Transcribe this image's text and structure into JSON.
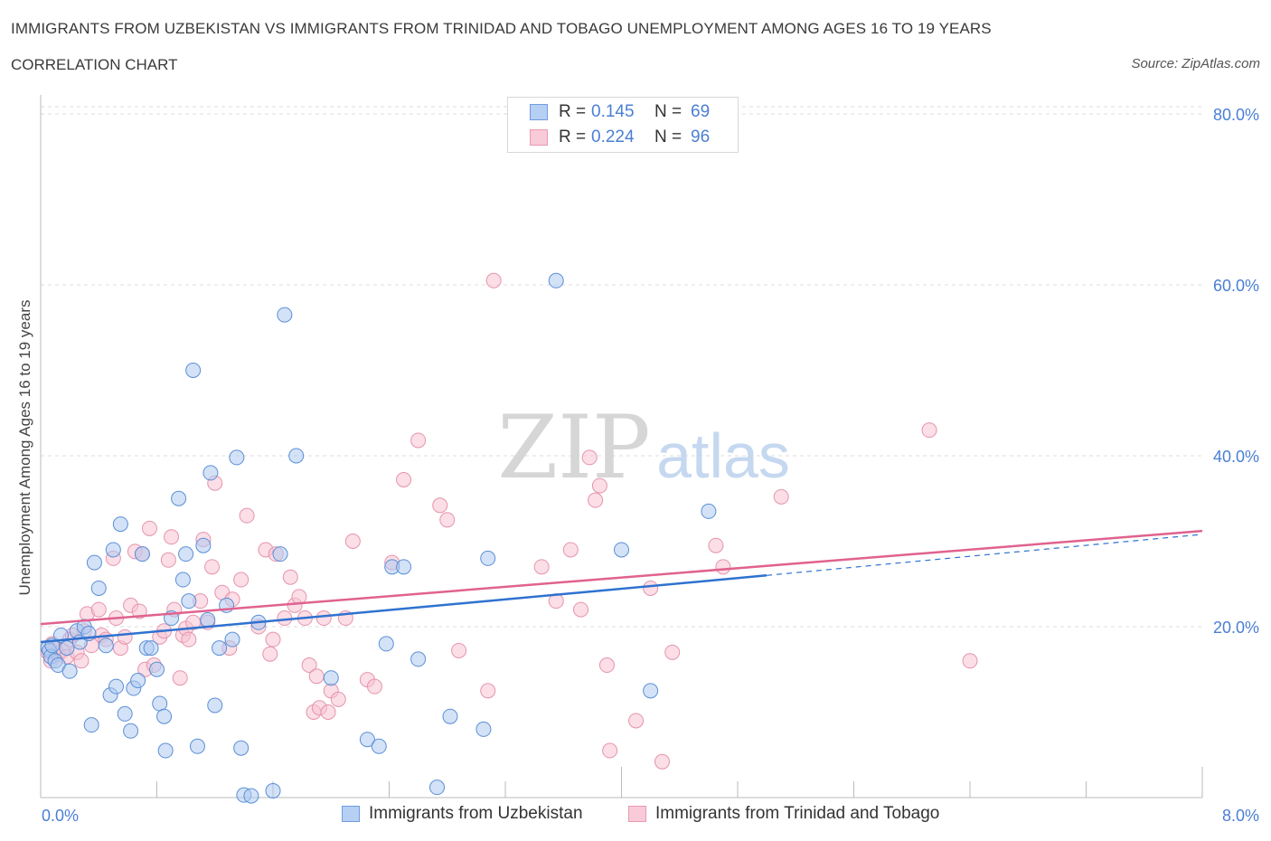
{
  "header": {
    "title": "IMMIGRANTS FROM UZBEKISTAN VS IMMIGRANTS FROM TRINIDAD AND TOBAGO UNEMPLOYMENT AMONG AGES 16 TO 19 YEARS",
    "subtitle": "CORRELATION CHART",
    "source": "Source: ZipAtlas.com"
  },
  "watermark": {
    "zip": "ZIP",
    "atlas": "atlas"
  },
  "legend": {
    "rows": [
      {
        "r_label": "R =",
        "r_value": "0.145",
        "n_label": "N =",
        "n_value": "69"
      },
      {
        "r_label": "R =",
        "r_value": "0.224",
        "n_label": "N =",
        "n_value": "96"
      }
    ]
  },
  "colors": {
    "blue_fill": "#aecbf0",
    "blue_stroke": "#5b8fd6",
    "blue_line": "#2f72d0",
    "pink_fill": "#f7c3d2",
    "pink_stroke": "#e594ad",
    "pink_line": "#e0628f",
    "axis_label": "#4a7fd4",
    "grid": "#dcdcdc"
  },
  "chart_data": {
    "type": "scatter",
    "title": "IMMIGRANTS FROM UZBEKISTAN VS IMMIGRANTS FROM TRINIDAD AND TOBAGO UNEMPLOYMENT AMONG AGES 16 TO 19 YEARS",
    "xlabel": "",
    "ylabel": "Unemployment Among Ages 16 to 19 years",
    "xlim": [
      0,
      8
    ],
    "ylim": [
      0,
      80
    ],
    "x_tick_labels": [
      "0.0%",
      "8.0%"
    ],
    "y_ticks": [
      20,
      40,
      60,
      80
    ],
    "y_tick_labels": [
      "20.0%",
      "40.0%",
      "60.0%",
      "80.0%"
    ],
    "grid": true,
    "legend_position": "top-center",
    "series": [
      {
        "name": "Immigrants from Uzbekistan",
        "color": "#5b8fd6",
        "trend": {
          "x": [
            0,
            5.0
          ],
          "y": [
            18.2,
            26.0
          ],
          "dashed_to": [
            8.0,
            30.8
          ]
        },
        "points": [
          [
            0.05,
            17.5
          ],
          [
            0.06,
            17.2
          ],
          [
            0.07,
            16.5
          ],
          [
            0.08,
            17.8
          ],
          [
            0.1,
            16.0
          ],
          [
            0.12,
            15.5
          ],
          [
            0.14,
            19.0
          ],
          [
            0.18,
            17.5
          ],
          [
            0.2,
            14.8
          ],
          [
            0.25,
            19.5
          ],
          [
            0.27,
            18.2
          ],
          [
            0.3,
            20.0
          ],
          [
            0.33,
            19.2
          ],
          [
            0.35,
            8.5
          ],
          [
            0.37,
            27.5
          ],
          [
            0.4,
            24.5
          ],
          [
            0.45,
            17.8
          ],
          [
            0.48,
            12.0
          ],
          [
            0.5,
            29.0
          ],
          [
            0.52,
            13.0
          ],
          [
            0.55,
            32.0
          ],
          [
            0.58,
            9.8
          ],
          [
            0.62,
            7.8
          ],
          [
            0.64,
            12.8
          ],
          [
            0.67,
            13.7
          ],
          [
            0.7,
            28.5
          ],
          [
            0.73,
            17.5
          ],
          [
            0.76,
            17.5
          ],
          [
            0.8,
            15.0
          ],
          [
            0.82,
            11.0
          ],
          [
            0.85,
            9.5
          ],
          [
            0.86,
            5.5
          ],
          [
            0.9,
            21.0
          ],
          [
            0.95,
            35.0
          ],
          [
            0.98,
            25.5
          ],
          [
            1.0,
            28.5
          ],
          [
            1.02,
            23.0
          ],
          [
            1.05,
            50.0
          ],
          [
            1.08,
            6.0
          ],
          [
            1.12,
            29.5
          ],
          [
            1.15,
            20.8
          ],
          [
            1.17,
            38.0
          ],
          [
            1.2,
            10.8
          ],
          [
            1.23,
            17.5
          ],
          [
            1.28,
            22.5
          ],
          [
            1.32,
            18.5
          ],
          [
            1.35,
            39.8
          ],
          [
            1.38,
            5.8
          ],
          [
            1.4,
            0.3
          ],
          [
            1.45,
            0.2
          ],
          [
            1.5,
            20.5
          ],
          [
            1.6,
            0.8
          ],
          [
            1.65,
            28.5
          ],
          [
            1.68,
            56.5
          ],
          [
            1.76,
            40.0
          ],
          [
            2.0,
            14.0
          ],
          [
            2.25,
            6.8
          ],
          [
            2.33,
            6.0
          ],
          [
            2.38,
            18.0
          ],
          [
            2.42,
            27.0
          ],
          [
            2.5,
            27.0
          ],
          [
            2.6,
            16.2
          ],
          [
            2.73,
            1.2
          ],
          [
            2.82,
            9.5
          ],
          [
            3.05,
            8.0
          ],
          [
            3.08,
            28.0
          ],
          [
            3.55,
            60.5
          ],
          [
            4.0,
            29.0
          ],
          [
            4.2,
            12.5
          ],
          [
            4.6,
            33.5
          ]
        ]
      },
      {
        "name": "Immigrants from Trinidad and Tobago",
        "color": "#e594ad",
        "trend": {
          "x": [
            0,
            8.0
          ],
          "y": [
            20.3,
            31.2
          ]
        },
        "points": [
          [
            0.05,
            17.0
          ],
          [
            0.07,
            16.0
          ],
          [
            0.08,
            18.0
          ],
          [
            0.1,
            17.5
          ],
          [
            0.12,
            16.8
          ],
          [
            0.15,
            17.2
          ],
          [
            0.18,
            16.5
          ],
          [
            0.2,
            18.5
          ],
          [
            0.22,
            19.0
          ],
          [
            0.25,
            17.0
          ],
          [
            0.28,
            16.0
          ],
          [
            0.3,
            19.5
          ],
          [
            0.32,
            21.5
          ],
          [
            0.35,
            17.8
          ],
          [
            0.4,
            22.0
          ],
          [
            0.42,
            19.0
          ],
          [
            0.45,
            18.5
          ],
          [
            0.5,
            28.0
          ],
          [
            0.52,
            21.0
          ],
          [
            0.55,
            17.5
          ],
          [
            0.58,
            18.8
          ],
          [
            0.62,
            22.5
          ],
          [
            0.65,
            28.8
          ],
          [
            0.68,
            21.8
          ],
          [
            0.7,
            28.5
          ],
          [
            0.72,
            15.0
          ],
          [
            0.75,
            31.5
          ],
          [
            0.78,
            15.5
          ],
          [
            0.82,
            18.8
          ],
          [
            0.85,
            19.5
          ],
          [
            0.88,
            27.8
          ],
          [
            0.9,
            30.5
          ],
          [
            0.92,
            22.0
          ],
          [
            0.96,
            14.0
          ],
          [
            0.98,
            19.0
          ],
          [
            1.0,
            19.8
          ],
          [
            1.02,
            18.5
          ],
          [
            1.05,
            20.5
          ],
          [
            1.1,
            23.0
          ],
          [
            1.12,
            30.2
          ],
          [
            1.15,
            20.5
          ],
          [
            1.18,
            27.0
          ],
          [
            1.2,
            36.8
          ],
          [
            1.25,
            24.0
          ],
          [
            1.3,
            17.5
          ],
          [
            1.32,
            23.2
          ],
          [
            1.38,
            25.5
          ],
          [
            1.42,
            33.0
          ],
          [
            1.5,
            20.0
          ],
          [
            1.55,
            29.0
          ],
          [
            1.58,
            16.8
          ],
          [
            1.6,
            18.5
          ],
          [
            1.62,
            28.5
          ],
          [
            1.68,
            21.0
          ],
          [
            1.72,
            25.8
          ],
          [
            1.75,
            22.5
          ],
          [
            1.78,
            23.5
          ],
          [
            1.82,
            21.0
          ],
          [
            1.85,
            15.5
          ],
          [
            1.88,
            10.0
          ],
          [
            1.9,
            14.2
          ],
          [
            1.92,
            10.5
          ],
          [
            1.95,
            21.0
          ],
          [
            1.98,
            10.0
          ],
          [
            2.0,
            12.5
          ],
          [
            2.05,
            11.5
          ],
          [
            2.15,
            30.0
          ],
          [
            2.25,
            13.8
          ],
          [
            2.3,
            13.0
          ],
          [
            2.42,
            27.5
          ],
          [
            2.5,
            37.2
          ],
          [
            2.6,
            41.8
          ],
          [
            2.75,
            34.2
          ],
          [
            2.8,
            32.5
          ],
          [
            2.88,
            17.2
          ],
          [
            3.08,
            12.5
          ],
          [
            3.12,
            60.5
          ],
          [
            3.45,
            27.0
          ],
          [
            3.55,
            23.0
          ],
          [
            3.65,
            29.0
          ],
          [
            3.72,
            22.0
          ],
          [
            3.78,
            39.8
          ],
          [
            3.82,
            34.8
          ],
          [
            3.85,
            36.5
          ],
          [
            3.9,
            15.5
          ],
          [
            3.92,
            5.5
          ],
          [
            4.1,
            9.0
          ],
          [
            4.2,
            24.5
          ],
          [
            4.28,
            4.2
          ],
          [
            4.35,
            17.0
          ],
          [
            4.65,
            29.5
          ],
          [
            4.7,
            27.0
          ],
          [
            5.1,
            35.2
          ],
          [
            6.12,
            43.0
          ],
          [
            6.4,
            16.0
          ],
          [
            2.1,
            21.0
          ]
        ]
      }
    ]
  }
}
